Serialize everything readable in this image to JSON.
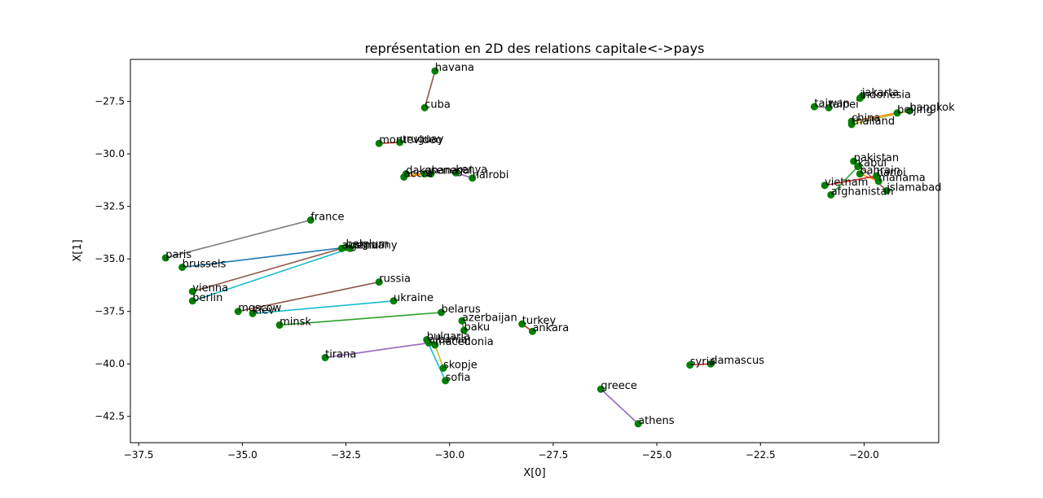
{
  "chart_data": {
    "type": "scatter",
    "title": "représentation en 2D des relations capitale<->pays",
    "xlabel": "X[0]",
    "ylabel": "X[1]",
    "xlim": [
      -37.7,
      -18.2
    ],
    "ylim": [
      -43.75,
      -25.5
    ],
    "xticks": [
      -37.5,
      -35.0,
      -32.5,
      -30.0,
      -27.5,
      -25.0,
      -22.5,
      -20.0
    ],
    "xtick_labels": [
      "−37.5",
      "−35.0",
      "−32.5",
      "−30.0",
      "−27.5",
      "−25.0",
      "−22.5",
      "−20.0"
    ],
    "yticks": [
      -27.5,
      -30.0,
      -32.5,
      -35.0,
      -37.5,
      -40.0,
      -42.5
    ],
    "ytick_labels": [
      "−27.5",
      "−30.0",
      "−32.5",
      "−35.0",
      "−37.5",
      "−40.0",
      "−42.5"
    ],
    "grid": false,
    "point_color": "#008000",
    "points": [
      {
        "label": "havana",
        "x": -30.35,
        "y": -26.05
      },
      {
        "label": "cuba",
        "x": -30.6,
        "y": -27.8
      },
      {
        "label": "montevideo",
        "x": -31.7,
        "y": -29.5
      },
      {
        "label": "uruguay",
        "x": -31.2,
        "y": -29.45
      },
      {
        "label": "dakar",
        "x": -31.05,
        "y": -30.95
      },
      {
        "label": "accra",
        "x": -31.1,
        "y": -31.1
      },
      {
        "label": "ghana",
        "x": -30.6,
        "y": -30.95
      },
      {
        "label": "senegal",
        "x": -30.45,
        "y": -30.95
      },
      {
        "label": "kenya",
        "x": -29.85,
        "y": -30.9
      },
      {
        "label": "nairobi",
        "x": -29.45,
        "y": -31.15
      },
      {
        "label": "france",
        "x": -33.35,
        "y": -33.15
      },
      {
        "label": "paris",
        "x": -36.85,
        "y": -34.95
      },
      {
        "label": "brussels",
        "x": -36.45,
        "y": -35.4
      },
      {
        "label": "belgium",
        "x": -32.5,
        "y": -34.45
      },
      {
        "label": "austria",
        "x": -32.6,
        "y": -34.5
      },
      {
        "label": "germany",
        "x": -32.4,
        "y": -34.5
      },
      {
        "label": "vienna",
        "x": -36.2,
        "y": -36.55
      },
      {
        "label": "berlin",
        "x": -36.2,
        "y": -37.0
      },
      {
        "label": "russia",
        "x": -31.7,
        "y": -36.1
      },
      {
        "label": "ukraine",
        "x": -31.35,
        "y": -37.0
      },
      {
        "label": "moscow",
        "x": -35.1,
        "y": -37.5
      },
      {
        "label": "kiev",
        "x": -34.75,
        "y": -37.6
      },
      {
        "label": "minsk",
        "x": -34.1,
        "y": -38.15
      },
      {
        "label": "belarus",
        "x": -30.2,
        "y": -37.55
      },
      {
        "label": "azerbaijan",
        "x": -29.7,
        "y": -37.95
      },
      {
        "label": "baku",
        "x": -29.65,
        "y": -38.4
      },
      {
        "label": "turkey",
        "x": -28.25,
        "y": -38.1
      },
      {
        "label": "ankara",
        "x": -28.0,
        "y": -38.45
      },
      {
        "label": "bulgaria",
        "x": -30.55,
        "y": -38.85
      },
      {
        "label": "albania",
        "x": -30.5,
        "y": -39.0
      },
      {
        "label": "macedonia",
        "x": -30.35,
        "y": -39.1
      },
      {
        "label": "tirana",
        "x": -33.0,
        "y": -39.7
      },
      {
        "label": "skopje",
        "x": -30.15,
        "y": -40.2
      },
      {
        "label": "sofia",
        "x": -30.1,
        "y": -40.8
      },
      {
        "label": "syria",
        "x": -24.2,
        "y": -40.05
      },
      {
        "label": "damascus",
        "x": -23.7,
        "y": -40.0
      },
      {
        "label": "greece",
        "x": -26.35,
        "y": -41.2
      },
      {
        "label": "athens",
        "x": -25.45,
        "y": -42.85
      },
      {
        "label": "jakarta",
        "x": -20.05,
        "y": -27.25
      },
      {
        "label": "indonesia",
        "x": -20.1,
        "y": -27.35
      },
      {
        "label": "taiwan",
        "x": -21.2,
        "y": -27.75
      },
      {
        "label": "taipei",
        "x": -20.85,
        "y": -27.8
      },
      {
        "label": "bangkok",
        "x": -18.9,
        "y": -27.95
      },
      {
        "label": "beijing",
        "x": -19.2,
        "y": -28.05
      },
      {
        "label": "china",
        "x": -20.3,
        "y": -28.45
      },
      {
        "label": "thailand",
        "x": -20.3,
        "y": -28.6
      },
      {
        "label": "pakistan",
        "x": -20.25,
        "y": -30.35
      },
      {
        "label": "kabul",
        "x": -20.15,
        "y": -30.6
      },
      {
        "label": "bahrain",
        "x": -20.1,
        "y": -30.95
      },
      {
        "label": "hanoi",
        "x": -19.7,
        "y": -31.05
      },
      {
        "label": "manama",
        "x": -19.65,
        "y": -31.3
      },
      {
        "label": "vietnam",
        "x": -20.95,
        "y": -31.5
      },
      {
        "label": "islamabad",
        "x": -19.45,
        "y": -31.75
      },
      {
        "label": "afghanistan",
        "x": -20.8,
        "y": -31.95
      }
    ],
    "links": [
      {
        "from": "havana",
        "to": "cuba",
        "color": "#8c564b"
      },
      {
        "from": "montevideo",
        "to": "uruguay",
        "color": "#d62728"
      },
      {
        "from": "dakar",
        "to": "senegal",
        "color": "#bcbd22"
      },
      {
        "from": "accra",
        "to": "ghana",
        "color": "#ff7f0e"
      },
      {
        "from": "nairobi",
        "to": "kenya",
        "color": "#9467bd"
      },
      {
        "from": "paris",
        "to": "france",
        "color": "#7f7f7f"
      },
      {
        "from": "brussels",
        "to": "belgium",
        "color": "#1f77b4"
      },
      {
        "from": "vienna",
        "to": "austria",
        "color": "#8c564b"
      },
      {
        "from": "berlin",
        "to": "germany",
        "color": "#17becf"
      },
      {
        "from": "moscow",
        "to": "russia",
        "color": "#8c564b"
      },
      {
        "from": "kiev",
        "to": "ukraine",
        "color": "#17becf"
      },
      {
        "from": "minsk",
        "to": "belarus",
        "color": "#2ca02c"
      },
      {
        "from": "baku",
        "to": "azerbaijan",
        "color": "#7f7f7f"
      },
      {
        "from": "ankara",
        "to": "turkey",
        "color": "#d62728"
      },
      {
        "from": "tirana",
        "to": "albania",
        "color": "#9467bd"
      },
      {
        "from": "skopje",
        "to": "macedonia",
        "color": "#bcbd22"
      },
      {
        "from": "sofia",
        "to": "bulgaria",
        "color": "#17becf"
      },
      {
        "from": "damascus",
        "to": "syria",
        "color": "#d62728"
      },
      {
        "from": "athens",
        "to": "greece",
        "color": "#9467bd"
      },
      {
        "from": "jakarta",
        "to": "indonesia",
        "color": "#8c564b"
      },
      {
        "from": "taipei",
        "to": "taiwan",
        "color": "#7f7f7f"
      },
      {
        "from": "bangkok",
        "to": "thailand",
        "color": "#bcbd22"
      },
      {
        "from": "beijing",
        "to": "china",
        "color": "#ff7f0e"
      },
      {
        "from": "kabul",
        "to": "afghanistan",
        "color": "#2ca02c"
      },
      {
        "from": "islamabad",
        "to": "pakistan",
        "color": "#8c564b"
      },
      {
        "from": "manama",
        "to": "bahrain",
        "color": "#ff7f0e"
      },
      {
        "from": "hanoi",
        "to": "vietnam",
        "color": "#d62728"
      }
    ]
  }
}
